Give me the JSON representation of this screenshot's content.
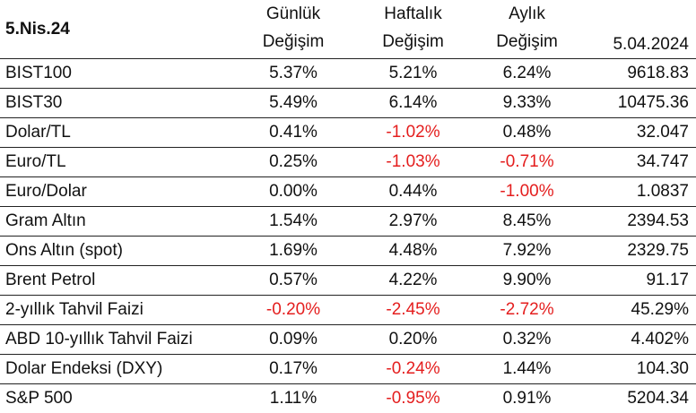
{
  "header": {
    "date_label": "5.Nis.24",
    "daily_line1": "Günlük",
    "daily_line2": "Değişim",
    "weekly_line1": "Haftalık",
    "weekly_line2": "Değişim",
    "monthly_line1": "Aylık",
    "monthly_line2": "Değişim",
    "value_date": "5.04.2024"
  },
  "rows": [
    {
      "name": "BIST100",
      "daily": "5.37%",
      "weekly": "5.21%",
      "monthly": "6.24%",
      "value": "9618.83"
    },
    {
      "name": "BIST30",
      "daily": "5.49%",
      "weekly": "6.14%",
      "monthly": "9.33%",
      "value": "10475.36"
    },
    {
      "name": "Dolar/TL",
      "daily": "0.41%",
      "weekly": "-1.02%",
      "monthly": "0.48%",
      "value": "32.047"
    },
    {
      "name": "Euro/TL",
      "daily": "0.25%",
      "weekly": "-1.03%",
      "monthly": "-0.71%",
      "value": "34.747"
    },
    {
      "name": "Euro/Dolar",
      "daily": "0.00%",
      "weekly": "0.44%",
      "monthly": "-1.00%",
      "value": "1.0837"
    },
    {
      "name": "Gram Altın",
      "daily": "1.54%",
      "weekly": "2.97%",
      "monthly": "8.45%",
      "value": "2394.53"
    },
    {
      "name": "Ons Altın (spot)",
      "daily": "1.69%",
      "weekly": "4.48%",
      "monthly": "7.92%",
      "value": "2329.75"
    },
    {
      "name": "Brent Petrol",
      "daily": "0.57%",
      "weekly": "4.22%",
      "monthly": "9.90%",
      "value": "91.17"
    },
    {
      "name": "2-yıllık Tahvil Faizi",
      "daily": "-0.20%",
      "weekly": "-2.45%",
      "monthly": "-2.72%",
      "value": "45.29%"
    },
    {
      "name": "ABD 10-yıllık Tahvil Faizi",
      "daily": "0.09%",
      "weekly": "0.20%",
      "monthly": "0.32%",
      "value": "4.402%"
    },
    {
      "name": "Dolar Endeksi (DXY)",
      "daily": "0.17%",
      "weekly": "-0.24%",
      "monthly": "1.44%",
      "value": "104.30"
    },
    {
      "name": "S&P 500",
      "daily": "1.11%",
      "weekly": "-0.95%",
      "monthly": "0.91%",
      "value": "5204.34"
    }
  ],
  "colors": {
    "negative": "#e41e1e",
    "text": "#111111",
    "grid": "#222222"
  }
}
